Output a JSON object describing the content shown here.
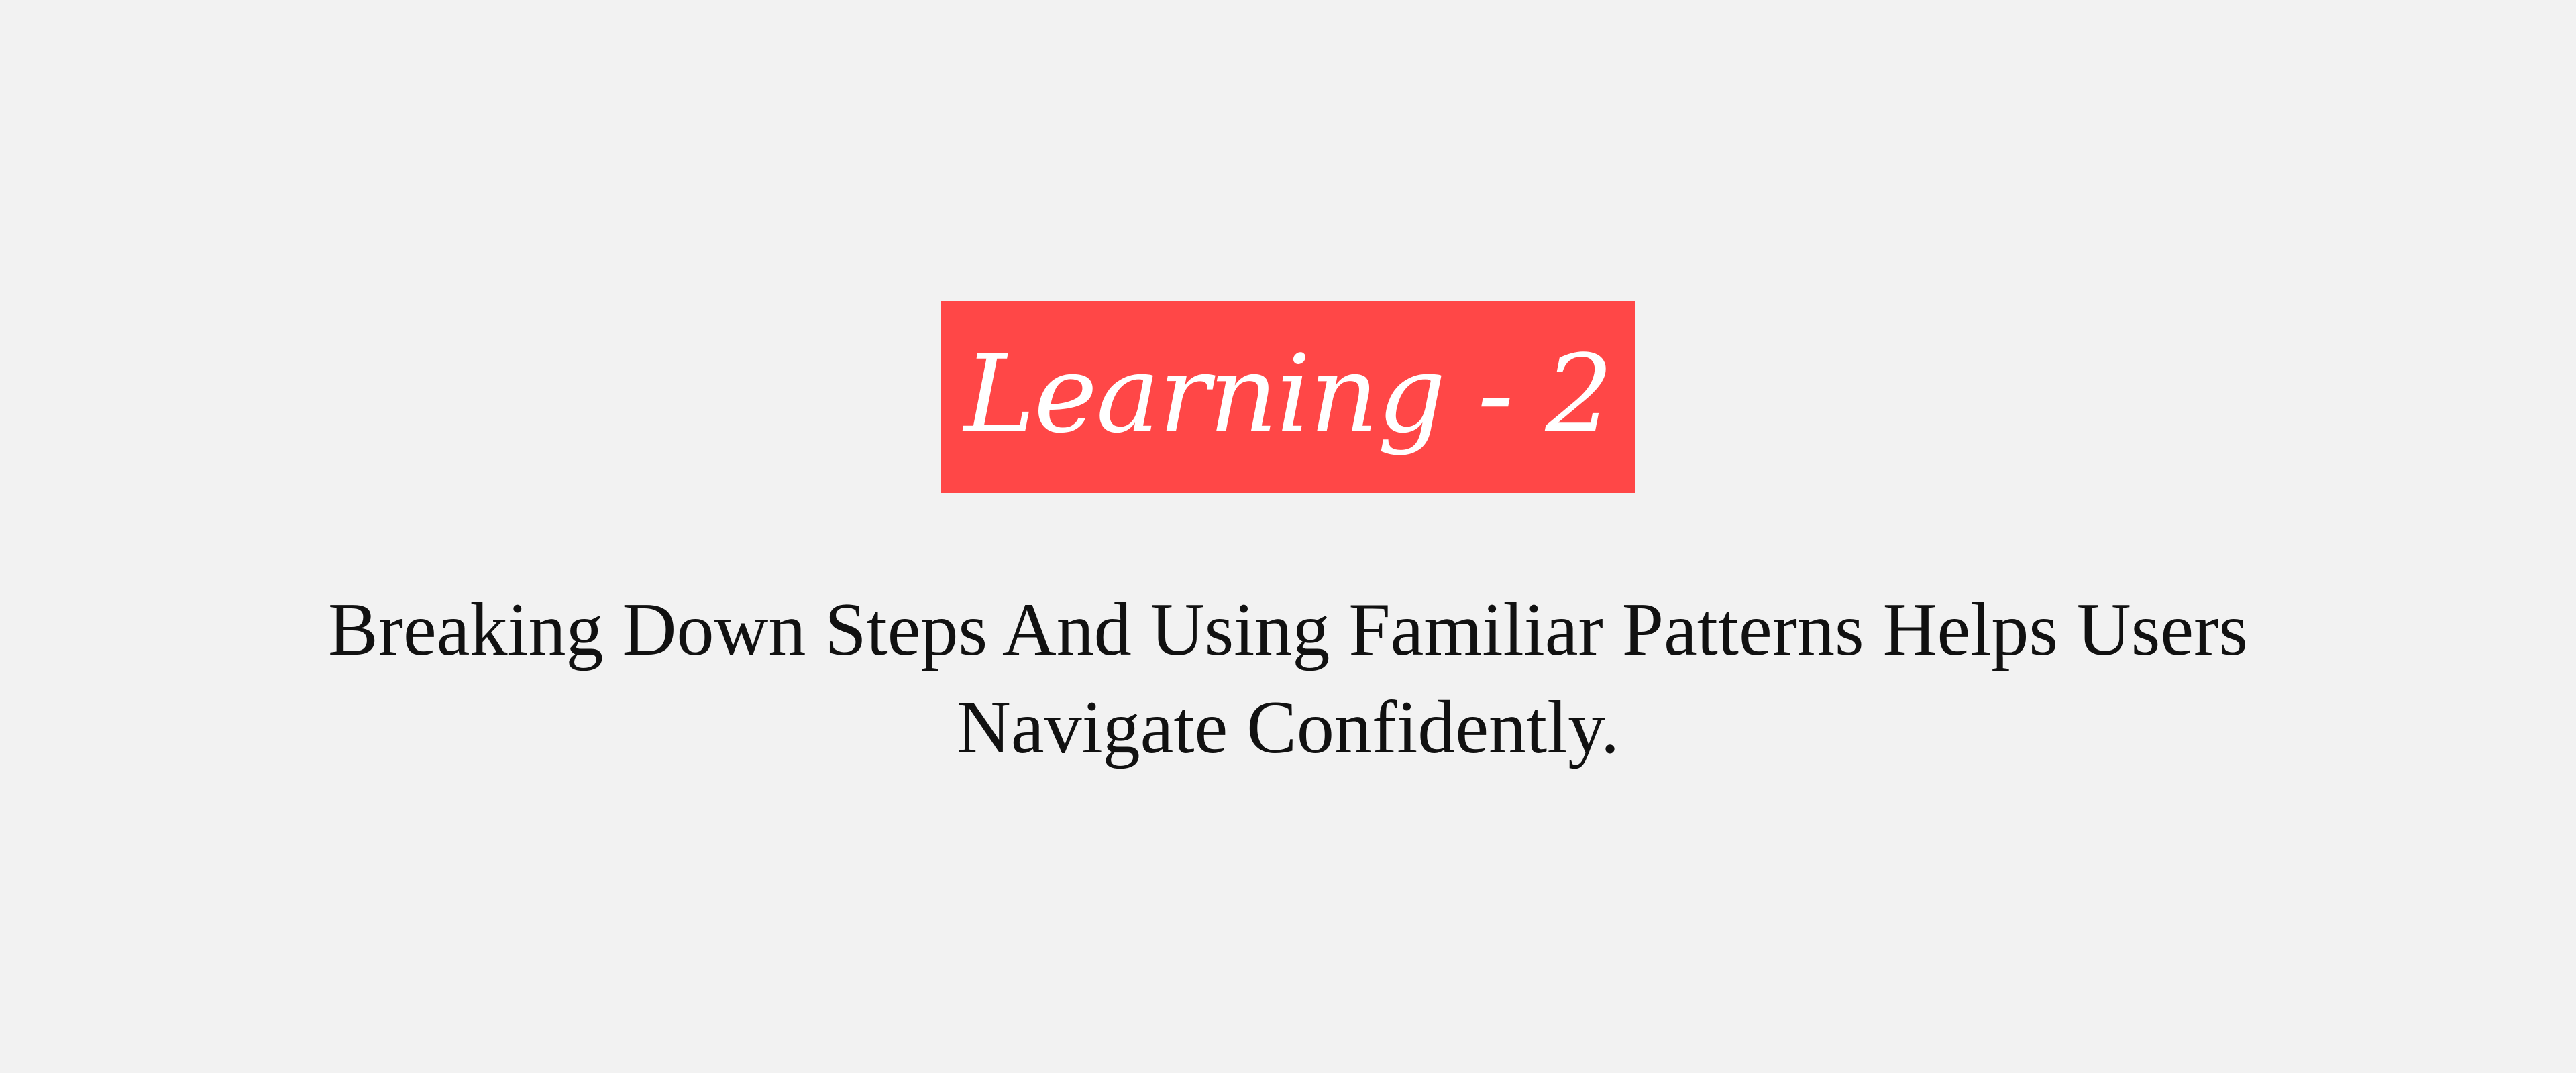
{
  "slide": {
    "title": "Learning - 2",
    "description": "Breaking Down Steps And Using Familiar Patterns Helps Users Navigate Confidently."
  },
  "colors": {
    "background": "#f2f2f2",
    "badge_background": "#ff4747",
    "title_text": "#ffffff",
    "body_text": "#111111"
  }
}
